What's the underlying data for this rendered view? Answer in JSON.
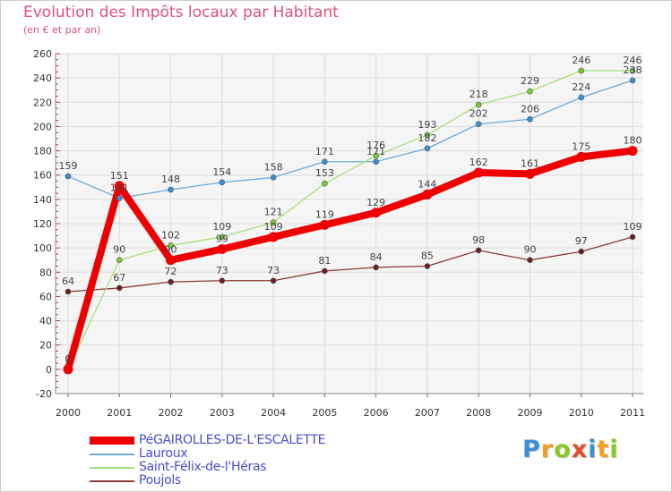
{
  "chart_data": {
    "type": "line",
    "title": "Evolution des Impôts locaux par Habitant",
    "subtitle": "(en € et par an)",
    "xlabel": "",
    "ylabel": "",
    "ylim": [
      -20,
      260
    ],
    "yticks": [
      -20,
      0,
      20,
      40,
      60,
      80,
      100,
      120,
      140,
      160,
      180,
      200,
      220,
      240,
      260
    ],
    "categories": [
      "2000",
      "2001",
      "2002",
      "2003",
      "2004",
      "2005",
      "2006",
      "2007",
      "2008",
      "2009",
      "2010",
      "2011"
    ],
    "grid": true,
    "series": [
      {
        "name": "PéGAIROLLES-DE-L'ESCALETTE",
        "color": "#ee0000",
        "marker": "#ee0000",
        "emphasis": true,
        "values": [
          0,
          151,
          90,
          99,
          109,
          119,
          129,
          144,
          162,
          161,
          175,
          180
        ]
      },
      {
        "name": "Lauroux",
        "color": "#6ea8d8",
        "marker": "#3a8fd0",
        "values": [
          159,
          141,
          148,
          154,
          158,
          171,
          171,
          182,
          202,
          206,
          224,
          238
        ]
      },
      {
        "name": "Saint-Félix-de-l'Héras",
        "color": "#a8e07a",
        "marker": "#77cc33",
        "values": [
          0,
          90,
          102,
          109,
          121,
          153,
          176,
          193,
          218,
          229,
          246,
          246
        ]
      },
      {
        "name": "Poujols",
        "color": "#8a3a3a",
        "marker": "#6a2020",
        "values": [
          64,
          67,
          72,
          73,
          73,
          81,
          84,
          85,
          98,
          90,
          97,
          109
        ]
      }
    ]
  },
  "brand": {
    "letters": [
      "P",
      "r",
      "o",
      "x",
      "i",
      "t",
      "i"
    ],
    "colors": [
      "#3b8fd6",
      "#f0a020",
      "#8ac926",
      "#e34a2a",
      "#3b8fd6",
      "#f0a020",
      "#8ac926"
    ]
  }
}
